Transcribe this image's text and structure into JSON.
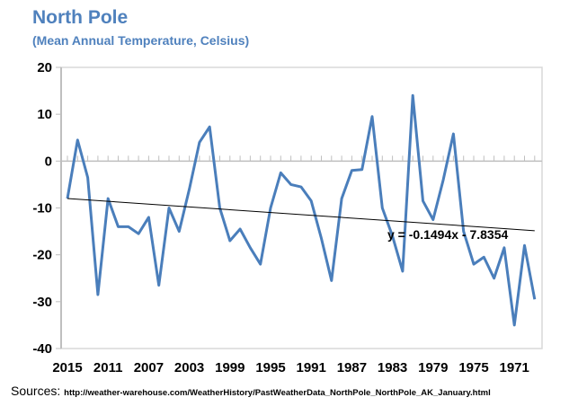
{
  "chart_data": {
    "type": "line",
    "title": "North Pole",
    "subtitle": "(Mean Annual Temperature, Celsius)",
    "xlabel": "",
    "ylabel": "",
    "ylim": [
      -40,
      20
    ],
    "yticks": [
      20,
      10,
      0,
      -10,
      -20,
      -30,
      -40
    ],
    "x": [
      2015,
      2014,
      2013,
      2012,
      2011,
      2010,
      2009,
      2008,
      2007,
      2006,
      2005,
      2004,
      2003,
      2002,
      2001,
      2000,
      1999,
      1998,
      1997,
      1996,
      1995,
      1994,
      1993,
      1992,
      1991,
      1990,
      1989,
      1988,
      1987,
      1986,
      1985,
      1984,
      1983,
      1982,
      1981,
      1980,
      1979,
      1978,
      1977,
      1976,
      1975,
      1974,
      1973,
      1972,
      1971,
      1970,
      1969
    ],
    "xticks": [
      "2015",
      "2011",
      "2007",
      "2003",
      "1999",
      "1995",
      "1991",
      "1987",
      "1983",
      "1979",
      "1975",
      "1971"
    ],
    "series": [
      {
        "name": "Mean Annual Temperature",
        "color": "#4a7ebb",
        "values": [
          -8,
          4.5,
          -3.5,
          -28.5,
          -8,
          -14,
          -14,
          -15.5,
          -12,
          -26.5,
          -10,
          -15,
          -6,
          4,
          7.3,
          -10,
          -17,
          -14.5,
          -18.5,
          -22,
          -10,
          -2.5,
          -5,
          -5.5,
          -8.5,
          -16.5,
          -25.5,
          -8,
          -2,
          -1.8,
          9.5,
          -10,
          -16,
          -23.5,
          14,
          -8.5,
          -12.5,
          -4,
          5.8,
          -15,
          -22,
          -20.5,
          -25,
          -18.5,
          -35,
          -18,
          -29.5
        ]
      }
    ],
    "trendline": {
      "slope": -0.1494,
      "intercept": -7.8354,
      "label": "y = -0.1494x - 7.8354"
    },
    "grid": false,
    "legend": "none"
  },
  "sources": {
    "label": "Sources:",
    "url": "http://weather-warehouse.com/WeatherHistory/PastWeatherData_NorthPole_NorthPole_AK_January.html"
  }
}
